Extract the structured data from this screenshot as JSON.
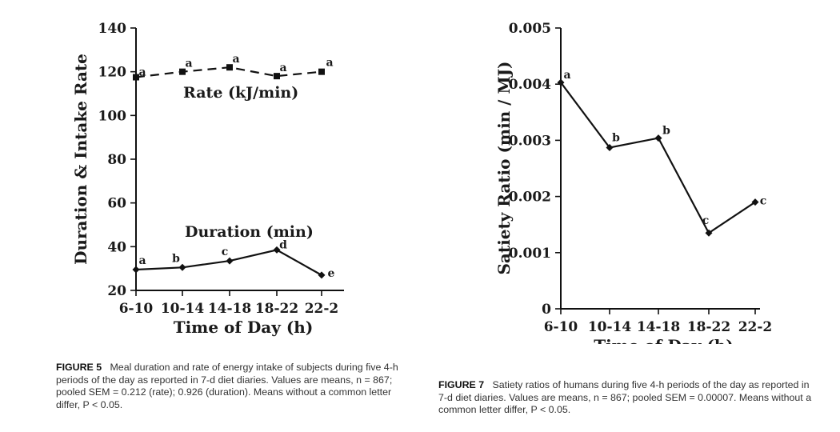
{
  "figures": [
    {
      "caption": {
        "label": "FIGURE 5",
        "text": "Meal duration and rate of energy intake of subjects during five 4-h periods of the day as reported in 7-d diet diaries. Values are means, n = 867; pooled SEM = 0.212 (rate); 0.926 (duration). Means without a common letter differ, P < 0.05."
      }
    },
    {
      "caption": {
        "label": "FIGURE 7",
        "text": "Satiety ratios of humans during five 4-h periods of the day as reported in 7-d diet diaries. Values are means, n = 867; pooled SEM = 0.00007. Means without a common letter differ, P < 0.05."
      }
    }
  ],
  "chart_data": [
    {
      "type": "line",
      "categories": [
        "6-10",
        "10-14",
        "14-18",
        "18-22",
        "22-2"
      ],
      "xlabel": "Time of Day (h)",
      "ylabel": "Duration & Intake Rate",
      "ylim": [
        20,
        140
      ],
      "yticks": [
        20,
        40,
        60,
        80,
        100,
        120,
        140
      ],
      "grid": false,
      "series": [
        {
          "name": "Rate (kJ/min)",
          "values": [
            117.5,
            120,
            122,
            118,
            120
          ],
          "labels": [
            "a",
            "a",
            "a",
            "a",
            "a"
          ],
          "line_style": "dashed",
          "marker": "square",
          "color": "#111111"
        },
        {
          "name": "Duration (min)",
          "values": [
            29.5,
            30.5,
            33.5,
            38.5,
            27
          ],
          "labels": [
            "a",
            "b",
            "c",
            "d",
            "e"
          ],
          "line_style": "solid",
          "marker": "diamond",
          "color": "#111111"
        }
      ]
    },
    {
      "type": "line",
      "categories": [
        "6-10",
        "10-14",
        "14-18",
        "18-22",
        "22-2"
      ],
      "xlabel": "Time of Day (h)",
      "ylabel": "Satiety Ratio (min / MJ)",
      "ylim": [
        0,
        0.005
      ],
      "yticks": [
        "0",
        "0.001",
        "0.002",
        "0.003",
        "0.004",
        "0.005"
      ],
      "grid": false,
      "series": [
        {
          "values": [
            0.00403,
            0.00287,
            0.00304,
            0.00135,
            0.0019
          ],
          "labels": [
            "a",
            "b",
            "b",
            "c",
            "c"
          ],
          "line_style": "solid",
          "marker": "diamond",
          "color": "#111111"
        }
      ]
    }
  ]
}
